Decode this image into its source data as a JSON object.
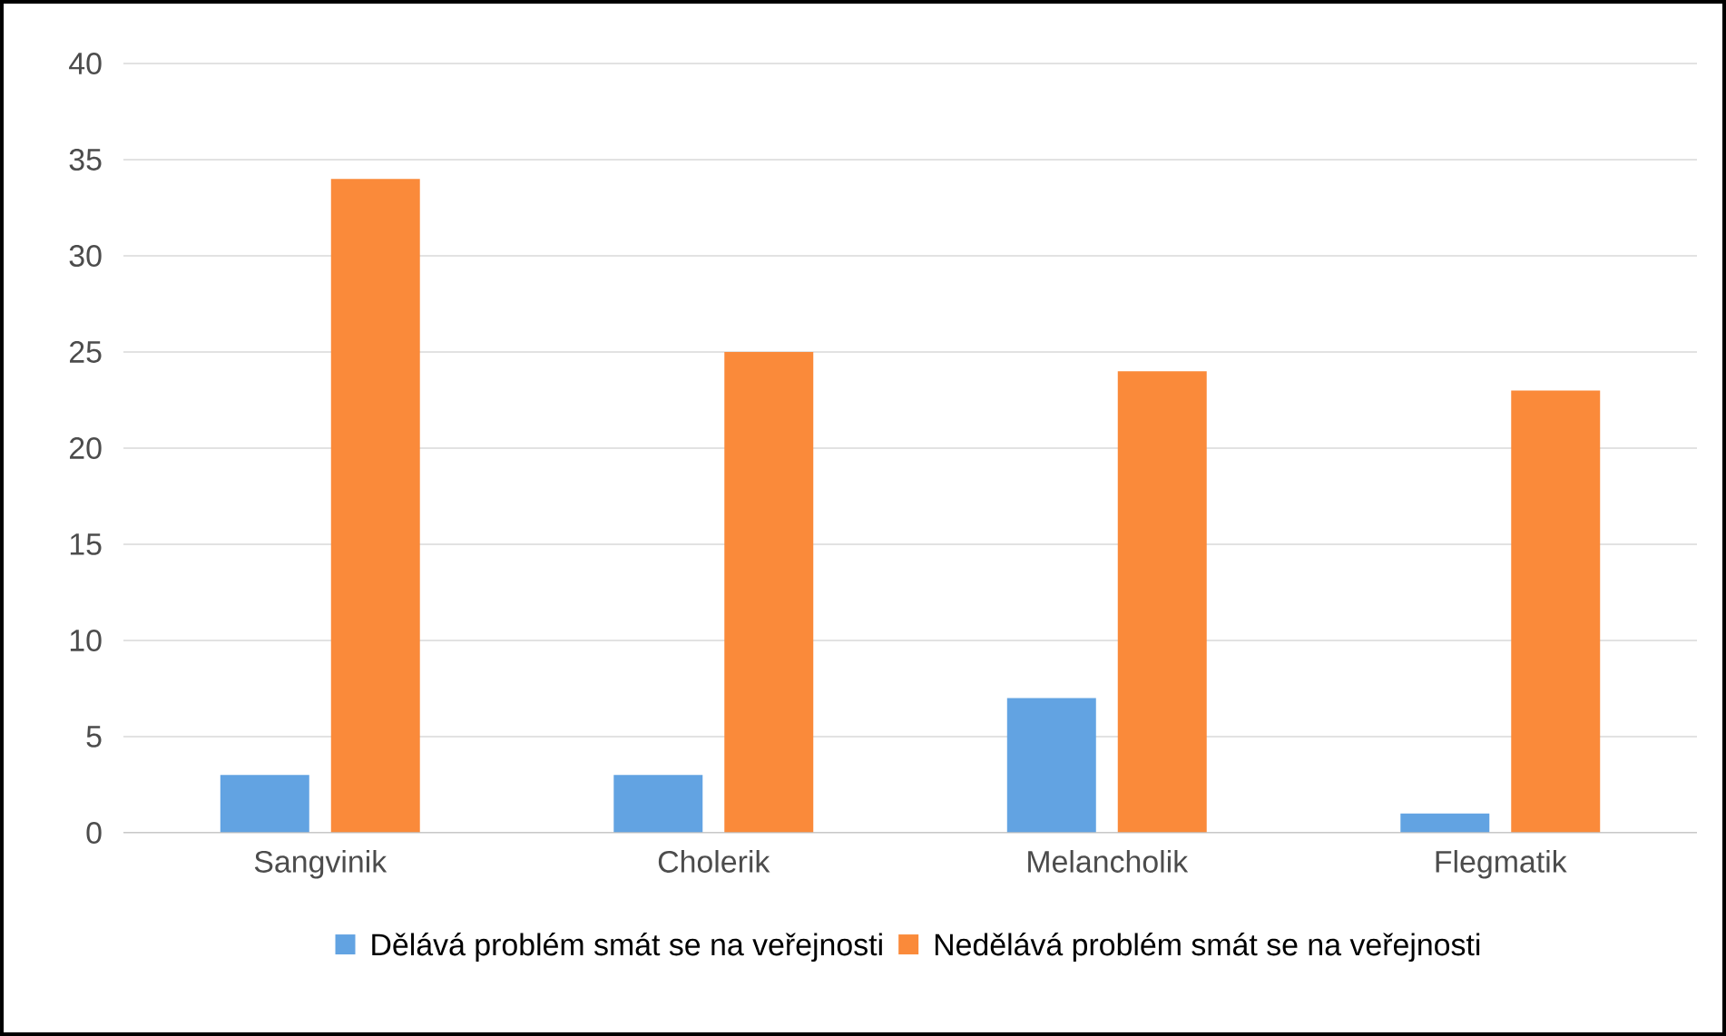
{
  "chart_data": {
    "type": "bar",
    "categories": [
      "Sangvinik",
      "Cholerik",
      "Melancholik",
      "Flegmatik"
    ],
    "series": [
      {
        "name": "Dělává problém smát se na veřejnosti",
        "color": "#62a3e2",
        "values": [
          3,
          3,
          7,
          1
        ]
      },
      {
        "name": "Nedělává problém smát se na veřejnosti",
        "color": "#fa8a3a",
        "values": [
          34,
          25,
          24,
          23
        ]
      }
    ],
    "ylim": [
      0,
      40
    ],
    "yticks": [
      0,
      5,
      10,
      15,
      20,
      25,
      30,
      35,
      40
    ],
    "grid": "y",
    "legend": "bottom"
  }
}
